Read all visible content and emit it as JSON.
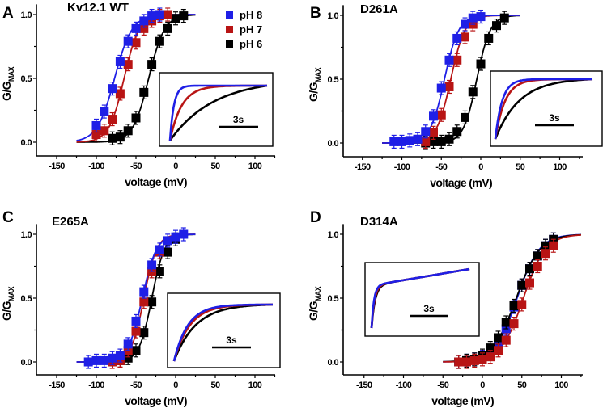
{
  "colors": {
    "pH 8": "#1f1fe6",
    "pH 7": "#b81414",
    "pH 6": "#000000"
  },
  "legend": [
    {
      "label": "pH 8",
      "color": "#1f1fe6"
    },
    {
      "label": "pH 7",
      "color": "#b81414"
    },
    {
      "label": "pH 6",
      "color": "#000000"
    }
  ],
  "chart_data": [
    {
      "type": "scatter",
      "panel": "A",
      "title": "Kv12.1 WT",
      "xlabel": "voltage (mV)",
      "ylabel": "G/G",
      "ylabel_sub": "MAX",
      "xlim": [
        -175,
        125
      ],
      "ylim": [
        -0.1,
        1.08
      ],
      "xticks": [
        -150,
        -100,
        -50,
        0,
        50,
        100
      ],
      "yticks": [
        0.0,
        0.5,
        1.0
      ],
      "ytick_labels": [
        "0.0",
        "0.5",
        "1.0"
      ],
      "legend_position": "top-right",
      "fit_range": [
        -125,
        25
      ],
      "series": [
        {
          "name": "pH 8",
          "x": [
            -100,
            -90,
            -80,
            -70,
            -60,
            -50,
            -40,
            -30,
            -20
          ],
          "y": [
            0.13,
            0.24,
            0.42,
            0.63,
            0.79,
            0.89,
            0.95,
            0.99,
            1.0
          ],
          "v_half": -77,
          "k": 11
        },
        {
          "name": "pH 7",
          "x": [
            -100,
            -90,
            -80,
            -70,
            -60,
            -50,
            -40,
            -30,
            -20,
            -10
          ],
          "y": [
            0.06,
            0.09,
            0.18,
            0.38,
            0.61,
            0.78,
            0.89,
            0.95,
            0.99,
            1.0
          ],
          "v_half": -65,
          "k": 9.5
        },
        {
          "name": "pH 6",
          "x": [
            -80,
            -70,
            -60,
            -50,
            -40,
            -30,
            -20,
            -10,
            0,
            10
          ],
          "y": [
            0.03,
            0.04,
            0.09,
            0.19,
            0.39,
            0.61,
            0.79,
            0.89,
            0.97,
            0.99
          ],
          "v_half": -34,
          "k": 10
        }
      ],
      "inset": {
        "scale_bar": "3s",
        "position": "bottom-right",
        "traces": [
          {
            "name": "pH 8",
            "tau": 0.04
          },
          {
            "name": "pH 7",
            "tau": 0.12
          },
          {
            "name": "pH 6",
            "tau": 0.45
          }
        ]
      }
    },
    {
      "type": "scatter",
      "panel": "B",
      "title": "D261A",
      "xlabel": "voltage (mV)",
      "ylabel": "G/G",
      "ylabel_sub": "MAX",
      "xlim": [
        -175,
        125
      ],
      "ylim": [
        -0.1,
        1.08
      ],
      "xticks": [
        -150,
        -100,
        -50,
        0,
        50,
        100
      ],
      "yticks": [
        0.0,
        0.5,
        1.0
      ],
      "ytick_labels": [
        "0.0",
        "0.5",
        "1.0"
      ],
      "fit_range": [
        -125,
        50
      ],
      "series": [
        {
          "name": "pH 8",
          "x": [
            -110,
            -100,
            -90,
            -80,
            -70,
            -60,
            -50,
            -40,
            -30,
            -20,
            -10,
            0
          ],
          "y": [
            0.01,
            0.01,
            0.02,
            0.03,
            0.09,
            0.21,
            0.43,
            0.65,
            0.82,
            0.93,
            0.98,
            0.99
          ],
          "v_half": -46,
          "k": 9
        },
        {
          "name": "pH 7",
          "x": [
            -70,
            -60,
            -50,
            -40,
            -30,
            -20,
            -10
          ],
          "y": [
            0.01,
            0.08,
            0.22,
            0.44,
            0.65,
            0.83,
            0.93
          ],
          "v_half": -38,
          "k": 9
        },
        {
          "name": "pH 6",
          "x": [
            -70,
            -60,
            -50,
            -40,
            -30,
            -20,
            -10,
            0,
            10,
            20,
            30
          ],
          "y": [
            0.0,
            0.01,
            0.01,
            0.03,
            0.09,
            0.2,
            0.4,
            0.62,
            0.82,
            0.92,
            0.98
          ],
          "v_half": -5,
          "k": 8.5
        }
      ],
      "inset": {
        "scale_bar": "3s",
        "position": "bottom-right",
        "traces": [
          {
            "name": "pH 8",
            "tau": 0.07
          },
          {
            "name": "pH 7",
            "tau": 0.1
          },
          {
            "name": "pH 6",
            "tau": 0.25
          }
        ]
      }
    },
    {
      "type": "scatter",
      "panel": "C",
      "title": "E265A",
      "xlabel": "voltage (mV)",
      "ylabel": "G/G",
      "ylabel_sub": "MAX",
      "xlim": [
        -175,
        125
      ],
      "ylim": [
        -0.1,
        1.08
      ],
      "xticks": [
        -150,
        -100,
        -50,
        0,
        50,
        100
      ],
      "yticks": [
        0.0,
        0.5,
        1.0
      ],
      "ytick_labels": [
        "0.0",
        "0.5",
        "1.0"
      ],
      "fit_range": [
        -125,
        25
      ],
      "series": [
        {
          "name": "pH 8",
          "x": [
            -110,
            -100,
            -90,
            -80,
            -70,
            -60,
            -50,
            -40,
            -30,
            -20,
            -10,
            0,
            10
          ],
          "y": [
            0.0,
            0.01,
            0.01,
            0.03,
            0.05,
            0.14,
            0.32,
            0.55,
            0.76,
            0.88,
            0.95,
            0.98,
            1.0
          ],
          "v_half": -42,
          "k": 9
        },
        {
          "name": "pH 7",
          "x": [
            -80,
            -70,
            -60,
            -50,
            -40,
            -30,
            -20
          ],
          "y": [
            0.0,
            0.01,
            0.09,
            0.24,
            0.47,
            0.71,
            0.86
          ],
          "v_half": -40,
          "k": 8
        },
        {
          "name": "pH 6",
          "x": [
            -70,
            -60,
            -50,
            -40,
            -30,
            -20,
            -10,
            0
          ],
          "y": [
            0.01,
            0.03,
            0.09,
            0.23,
            0.47,
            0.71,
            0.86,
            0.96
          ],
          "v_half": -30,
          "k": 8
        }
      ],
      "inset": {
        "scale_bar": "3s",
        "position": "bottom-right",
        "traces": [
          {
            "name": "pH 8",
            "tau": 0.14
          },
          {
            "name": "pH 7",
            "tau": 0.16
          },
          {
            "name": "pH 6",
            "tau": 0.22
          }
        ]
      }
    },
    {
      "type": "scatter",
      "panel": "D",
      "title": "D314A",
      "xlabel": "voltage (mV)",
      "ylabel": "G/G",
      "ylabel_sub": "MAX",
      "xlim": [
        -175,
        125
      ],
      "ylim": [
        -0.1,
        1.08
      ],
      "xticks": [
        -150,
        -100,
        -50,
        0,
        50,
        100
      ],
      "yticks": [
        0.0,
        0.5,
        1.0
      ],
      "ytick_labels": [
        "0.0",
        "0.5",
        "1.0"
      ],
      "fit_range": [
        -50,
        125
      ],
      "series": [
        {
          "name": "pH 7",
          "x": [
            -30,
            -20,
            -10,
            0,
            10,
            20,
            30,
            40,
            50,
            60,
            70,
            80,
            90
          ],
          "y": [
            0.0,
            0.0,
            0.01,
            0.02,
            0.04,
            0.09,
            0.17,
            0.3,
            0.45,
            0.62,
            0.75,
            0.85,
            0.91
          ],
          "v_half": 52,
          "k": 14
        },
        {
          "name": "pH 6",
          "x": [
            -30,
            -20,
            -10,
            0,
            10,
            20,
            30,
            40,
            50,
            60,
            70,
            80,
            90
          ],
          "y": [
            0.0,
            0.01,
            0.02,
            0.05,
            0.11,
            0.19,
            0.31,
            0.44,
            0.6,
            0.73,
            0.83,
            0.91,
            0.96
          ],
          "v_half": 43,
          "k": 15
        },
        {
          "name": "pH 8",
          "x": [
            -30,
            -20,
            -10,
            0,
            10,
            20,
            30,
            40,
            50,
            60,
            70,
            80,
            90
          ],
          "y": [
            0.0,
            0.01,
            0.02,
            0.04,
            0.07,
            0.14,
            0.26,
            0.43,
            0.6,
            0.73,
            0.83,
            0.91,
            0.96
          ],
          "v_half": 44,
          "k": 14
        }
      ],
      "inset": {
        "scale_bar": "3s",
        "position": "top-left",
        "traces": [
          {
            "name": "pH 8",
            "tau": 0.025
          },
          {
            "name": "pH 7",
            "tau": 0.03
          },
          {
            "name": "pH 6",
            "tau": 0.035
          }
        ]
      }
    }
  ]
}
